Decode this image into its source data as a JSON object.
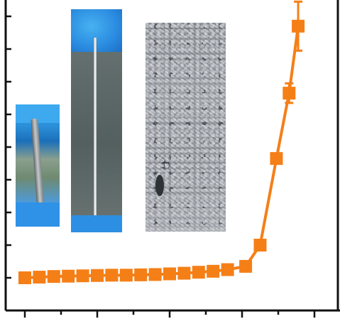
{
  "chart_data": {
    "type": "line",
    "title": "",
    "xlabel": "",
    "ylabel": "",
    "xlim": [
      0,
      8
    ],
    "ylim": [
      0,
      9.5
    ],
    "grid": false,
    "legend": "none",
    "x_ticks": [
      0,
      1,
      2,
      3,
      4,
      5,
      6,
      7,
      8
    ],
    "y_ticks": [
      1,
      2,
      3,
      4,
      5,
      6,
      7,
      8,
      9
    ],
    "series": [
      {
        "color": "#f57f17",
        "marker": "square",
        "line_style": "solid",
        "x": [
          0.0,
          0.4,
          0.8,
          1.2,
          1.6,
          2.0,
          2.4,
          2.8,
          3.2,
          3.6,
          4.0,
          4.4,
          4.8,
          5.2,
          5.6,
          6.1,
          6.5,
          6.95,
          7.3,
          7.55
        ],
        "y": [
          1.0,
          1.02,
          1.04,
          1.05,
          1.06,
          1.07,
          1.08,
          1.08,
          1.09,
          1.1,
          1.12,
          1.14,
          1.17,
          1.2,
          1.25,
          1.35,
          2.0,
          4.65,
          6.65,
          8.7
        ],
        "error_y": [
          0,
          0,
          0,
          0,
          0,
          0,
          0,
          0,
          0,
          0,
          0,
          0,
          0,
          0,
          0,
          0,
          0,
          0,
          0.3,
          0.75
        ]
      }
    ],
    "insets": [
      {
        "name": "short-sample-photo",
        "description_icon": "photo-glove-sample-icon"
      },
      {
        "name": "long-wire-photo",
        "description_icon": "photo-glove-wire-icon"
      },
      {
        "name": "surface-micrograph",
        "description_icon": "micrograph-icon"
      }
    ]
  }
}
